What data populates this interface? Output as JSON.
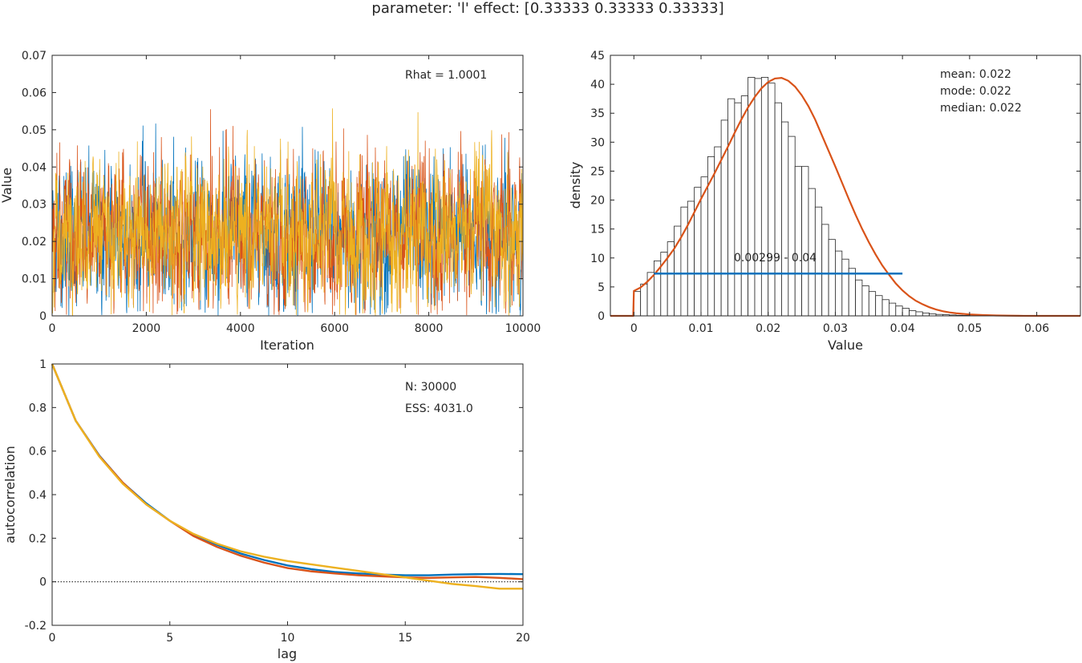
{
  "figure": {
    "title": "parameter: 'l' effect: [0.33333 0.33333 0.33333]"
  },
  "colors": {
    "chain1": "#0072BD",
    "chain2": "#D95319",
    "chain3": "#EDB120",
    "axis": "#262626",
    "hist_edge": "#262626"
  },
  "chart_data": [
    {
      "id": "trace",
      "type": "line",
      "xlabel": "Iteration",
      "ylabel": "Value",
      "xlim": [
        0,
        10000
      ],
      "ylim": [
        0,
        0.07
      ],
      "xticks": [
        0,
        2000,
        4000,
        6000,
        8000,
        10000
      ],
      "yticks": [
        0,
        0.01,
        0.02,
        0.03,
        0.04,
        0.05,
        0.06,
        0.07
      ],
      "xtick_labels": [
        "0",
        "2000",
        "4000",
        "6000",
        "8000",
        "10000"
      ],
      "ytick_labels": [
        "0",
        "0.01",
        "0.02",
        "0.03",
        "0.04",
        "0.05",
        "0.06",
        "0.07"
      ],
      "annotation": "Rhat = 1.0001",
      "series": [
        {
          "color": "#0072BD",
          "n": 10000,
          "mean": 0.022,
          "sd": 0.0095,
          "min": 0.0,
          "max": 0.06
        },
        {
          "color": "#D95319",
          "n": 10000,
          "mean": 0.022,
          "sd": 0.0095,
          "min": 0.0,
          "max": 0.058
        },
        {
          "color": "#EDB120",
          "n": 10000,
          "mean": 0.022,
          "sd": 0.0095,
          "min": 0.0,
          "max": 0.057
        }
      ]
    },
    {
      "id": "density",
      "type": "bar",
      "xlabel": "Value",
      "ylabel": "density",
      "xlim": [
        -0.0035,
        0.0665
      ],
      "ylim": [
        0,
        45
      ],
      "xticks": [
        0,
        0.01,
        0.02,
        0.03,
        0.04,
        0.05,
        0.06
      ],
      "yticks": [
        0,
        5,
        10,
        15,
        20,
        25,
        30,
        35,
        40,
        45
      ],
      "xtick_labels": [
        "0",
        "0.01",
        "0.02",
        "0.03",
        "0.04",
        "0.05",
        "0.06"
      ],
      "ytick_labels": [
        "0",
        "5",
        "10",
        "15",
        "20",
        "25",
        "30",
        "35",
        "40",
        "45"
      ],
      "bin_width": 0.001,
      "bin_start": 0.0,
      "hist_values": [
        4.2,
        5.5,
        7.5,
        9.5,
        11,
        12.8,
        15.5,
        18.8,
        19.8,
        22.2,
        24,
        27.5,
        29.2,
        33.8,
        37.5,
        36.8,
        38,
        41.2,
        41,
        41.2,
        40.2,
        36.8,
        33.5,
        31,
        25.8,
        25.8,
        22,
        18.8,
        15.8,
        13.2,
        11.2,
        9.8,
        8.2,
        6.2,
        5.2,
        4.2,
        3.5,
        2.8,
        2.2,
        1.7,
        1.3,
        0.9,
        0.7,
        0.5,
        0.35,
        0.25,
        0.2,
        0.15,
        0.1,
        0.08,
        0.05,
        0.04,
        0.03,
        0.02,
        0.02,
        0.01
      ],
      "kde_x": [
        -0.0035,
        -0.0001,
        0,
        0.001,
        0.002,
        0.003,
        0.004,
        0.005,
        0.006,
        0.007,
        0.008,
        0.009,
        0.01,
        0.011,
        0.012,
        0.013,
        0.014,
        0.015,
        0.016,
        0.017,
        0.018,
        0.019,
        0.02,
        0.021,
        0.022,
        0.023,
        0.024,
        0.025,
        0.026,
        0.027,
        0.028,
        0.029,
        0.03,
        0.031,
        0.032,
        0.033,
        0.034,
        0.035,
        0.036,
        0.037,
        0.038,
        0.039,
        0.04,
        0.041,
        0.042,
        0.043,
        0.044,
        0.045,
        0.046,
        0.047,
        0.048,
        0.05,
        0.052,
        0.054,
        0.056,
        0.058,
        0.06,
        0.0665
      ],
      "kde_y": [
        0,
        0,
        4.3,
        4.9,
        5.9,
        7.1,
        8.5,
        10,
        11.6,
        13.5,
        15.6,
        17.9,
        20.2,
        22.4,
        24.6,
        26.9,
        29.2,
        31.6,
        33.9,
        36,
        37.8,
        39.3,
        40.4,
        41,
        41.1,
        40.6,
        39.6,
        38.1,
        36.2,
        33.9,
        31.2,
        28.5,
        25.8,
        23,
        20.2,
        17.5,
        15,
        12.7,
        10.6,
        8.7,
        7.1,
        5.6,
        4.4,
        3.4,
        2.6,
        2,
        1.5,
        1.1,
        0.8,
        0.6,
        0.45,
        0.25,
        0.14,
        0.07,
        0.03,
        0.01,
        0,
        0
      ],
      "hdi_interval": [
        0.00299,
        0.04
      ],
      "hdi_y": 7.3,
      "hdi_label": "0.00299 - 0.04",
      "stats_lines": [
        "mean: 0.022",
        "mode: 0.022",
        "median: 0.022"
      ]
    },
    {
      "id": "autocorr",
      "type": "line",
      "xlabel": "lag",
      "ylabel": "autocorrelation",
      "xlim": [
        0,
        20
      ],
      "ylim": [
        -0.2,
        1
      ],
      "xticks": [
        0,
        5,
        10,
        15,
        20
      ],
      "yticks": [
        -0.2,
        0,
        0.2,
        0.4,
        0.6,
        0.8,
        1
      ],
      "xtick_labels": [
        "0",
        "5",
        "10",
        "15",
        "20"
      ],
      "ytick_labels": [
        "-0.2",
        "0",
        "0.2",
        "0.4",
        "0.6",
        "0.8",
        "1"
      ],
      "x": [
        0,
        1,
        2,
        3,
        4,
        5,
        6,
        7,
        8,
        9,
        10,
        11,
        12,
        13,
        14,
        15,
        16,
        17,
        18,
        19,
        20
      ],
      "series": [
        {
          "color": "#0072BD",
          "values": [
            1,
            0.74,
            0.58,
            0.455,
            0.36,
            0.28,
            0.215,
            0.17,
            0.13,
            0.1,
            0.075,
            0.058,
            0.045,
            0.038,
            0.033,
            0.03,
            0.03,
            0.033,
            0.035,
            0.036,
            0.035
          ]
        },
        {
          "color": "#D95319",
          "values": [
            1,
            0.74,
            0.578,
            0.455,
            0.355,
            0.28,
            0.21,
            0.16,
            0.12,
            0.088,
            0.063,
            0.048,
            0.038,
            0.03,
            0.025,
            0.02,
            0.018,
            0.02,
            0.022,
            0.018,
            0.012
          ]
        },
        {
          "color": "#EDB120",
          "values": [
            1,
            0.74,
            0.575,
            0.45,
            0.355,
            0.28,
            0.22,
            0.175,
            0.14,
            0.115,
            0.095,
            0.08,
            0.065,
            0.05,
            0.035,
            0.02,
            0.005,
            -0.01,
            -0.02,
            -0.032,
            -0.032
          ]
        }
      ],
      "zero_line": 0,
      "stats_lines": [
        "N: 30000",
        "ESS: 4031.0"
      ]
    }
  ]
}
